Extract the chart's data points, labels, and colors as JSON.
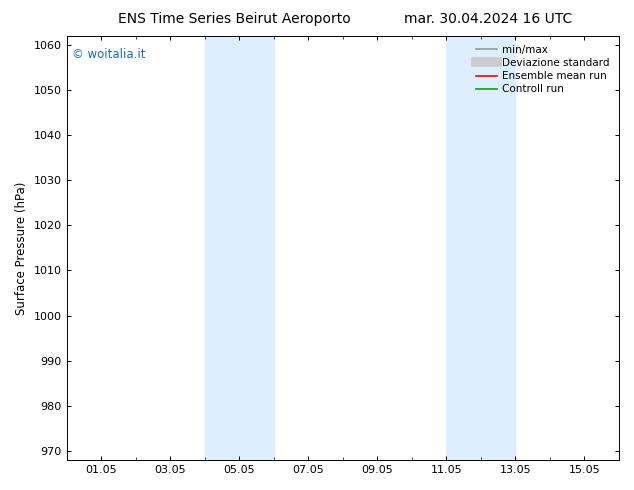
{
  "title_left": "ENS Time Series Beirut Aeroporto",
  "title_right": "mar. 30.04.2024 16 UTC",
  "ylabel": "Surface Pressure (hPa)",
  "ylim": [
    968,
    1062
  ],
  "yticks": [
    970,
    980,
    990,
    1000,
    1010,
    1020,
    1030,
    1040,
    1050,
    1060
  ],
  "xtick_labels": [
    "01.05",
    "03.05",
    "05.05",
    "07.05",
    "09.05",
    "11.05",
    "13.05",
    "15.05"
  ],
  "xtick_positions": [
    1,
    3,
    5,
    7,
    9,
    11,
    13,
    15
  ],
  "xlim": [
    0,
    16
  ],
  "shaded_bands": [
    {
      "start": 4,
      "end": 6
    },
    {
      "start": 11,
      "end": 13
    }
  ],
  "shaded_color": "#ddeeff",
  "watermark_text": "© woitalia.it",
  "watermark_color": "#1a6fb5",
  "legend_items": [
    {
      "label": "min/max",
      "color": "#999999",
      "lw": 1.2,
      "type": "line"
    },
    {
      "label": "Deviazione standard",
      "color": "#cccccc",
      "lw": 7,
      "type": "line"
    },
    {
      "label": "Ensemble mean run",
      "color": "#ff0000",
      "lw": 1.2,
      "type": "line"
    },
    {
      "label": "Controll run",
      "color": "#00aa00",
      "lw": 1.2,
      "type": "line"
    }
  ],
  "bg_color": "#ffffff",
  "title_fontsize": 10,
  "tick_fontsize": 8,
  "ylabel_fontsize": 8.5
}
